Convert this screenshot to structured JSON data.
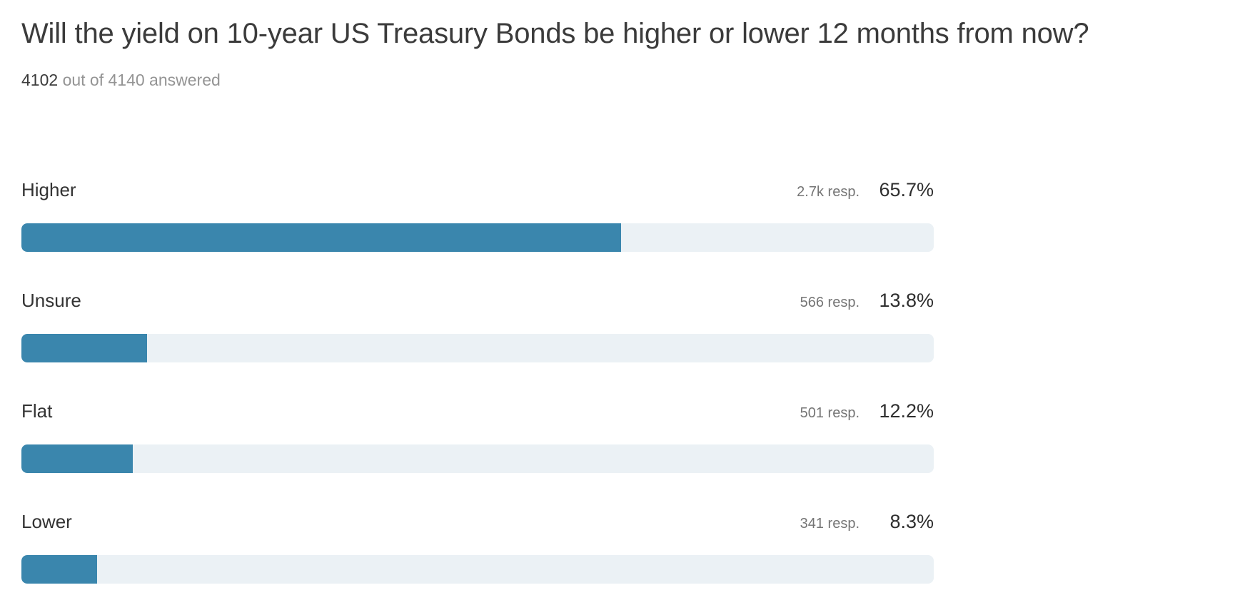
{
  "poll": {
    "question": "Will the yield on 10-year US Treasury Bonds be higher or lower 12 months from now?",
    "answered_count": "4102",
    "answered_suffix": "out of 4140 answered"
  },
  "colors": {
    "bar_fill": "#3a86ad",
    "bar_track": "#ebf1f5",
    "text_dark": "#3b3b3b",
    "text_gray": "#949494"
  },
  "chart_data": {
    "type": "bar",
    "orientation": "horizontal",
    "title": "Will the yield on 10-year US Treasury Bonds be higher or lower 12 months from now?",
    "subtitle": "4102 out of 4140 answered",
    "categories": [
      "Higher",
      "Unsure",
      "Flat",
      "Lower"
    ],
    "values_percent": [
      65.7,
      13.8,
      12.2,
      8.3
    ],
    "percent_labels": [
      "65.7%",
      "13.8%",
      "12.2%",
      "8.3%"
    ],
    "response_labels": [
      "2.7k resp.",
      "566 resp.",
      "501 resp.",
      "341 resp."
    ],
    "total_answered": 4102,
    "total_invited": 4140,
    "xlim": [
      0,
      100
    ],
    "grid": false,
    "legend": false
  }
}
